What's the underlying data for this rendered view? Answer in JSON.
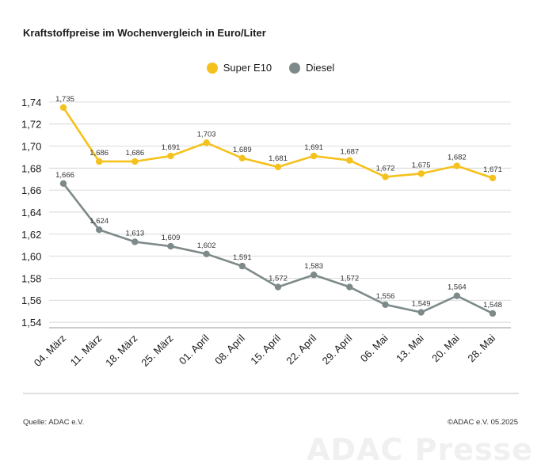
{
  "chart_data": {
    "type": "line",
    "title": "Kraftstoffpreise im Wochenvergleich in Euro/Liter",
    "categories": [
      "04. März",
      "11. März",
      "18. März",
      "25. März",
      "01. April",
      "08. April",
      "15. April",
      "22. April",
      "29. April",
      "06. Mai",
      "13. Mai",
      "20. Mai",
      "28. Mai"
    ],
    "series": [
      {
        "name": "Super E10",
        "color": "#f5c11c",
        "values": [
          1.735,
          1.686,
          1.686,
          1.691,
          1.703,
          1.689,
          1.681,
          1.691,
          1.687,
          1.672,
          1.675,
          1.682,
          1.671
        ],
        "labels": [
          "1,735",
          "1,686",
          "1,686",
          "1,691",
          "1,703",
          "1,689",
          "1,681",
          "1,691",
          "1,687",
          "1,672",
          "1,675",
          "1,682",
          "1,671"
        ]
      },
      {
        "name": "Diesel",
        "color": "#7e8a8a",
        "values": [
          1.666,
          1.624,
          1.613,
          1.609,
          1.602,
          1.591,
          1.572,
          1.583,
          1.572,
          1.556,
          1.549,
          1.564,
          1.548
        ],
        "labels": [
          "1,666",
          "1,624",
          "1,613",
          "1,609",
          "1,602",
          "1,591",
          "1,572",
          "1,583",
          "1,572",
          "1,556",
          "1,549",
          "1,564",
          "1,548"
        ]
      }
    ],
    "ylim": [
      1.535,
      1.755
    ],
    "yticks": [
      1.54,
      1.56,
      1.58,
      1.6,
      1.62,
      1.64,
      1.66,
      1.68,
      1.7,
      1.72,
      1.74
    ],
    "ytick_labels": [
      "1,54",
      "1,56",
      "1,58",
      "1,60",
      "1,62",
      "1,64",
      "1,66",
      "1,68",
      "1,70",
      "1,72",
      "1,74"
    ],
    "grid": true,
    "legend": "top-center"
  },
  "footer": {
    "source": "Quelle: ADAC e.V.",
    "copyright": "©ADAC e.V. 05.2025",
    "watermark": "ADAC Presse"
  }
}
